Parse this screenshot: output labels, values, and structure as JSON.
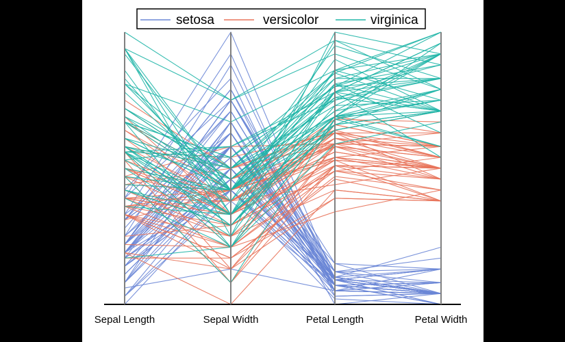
{
  "chart_data": {
    "type": "parallel-coordinates",
    "axes": [
      "Sepal Length",
      "Sepal Width",
      "Petal Length",
      "Petal Width"
    ],
    "normalized": true,
    "ylim": [
      0,
      1
    ],
    "legend": {
      "placement": "top-center"
    },
    "series": [
      {
        "name": "setosa",
        "color": "#6a86d6",
        "lines": [
          [
            0.22,
            0.63,
            0.07,
            0.04
          ],
          [
            0.17,
            0.42,
            0.07,
            0.04
          ],
          [
            0.11,
            0.5,
            0.05,
            0.04
          ],
          [
            0.08,
            0.46,
            0.09,
            0.04
          ],
          [
            0.19,
            0.67,
            0.07,
            0.04
          ],
          [
            0.31,
            0.79,
            0.12,
            0.13
          ],
          [
            0.08,
            0.58,
            0.07,
            0.08
          ],
          [
            0.19,
            0.58,
            0.09,
            0.04
          ],
          [
            0.03,
            0.38,
            0.07,
            0.04
          ],
          [
            0.17,
            0.46,
            0.09,
            0.0
          ],
          [
            0.31,
            0.71,
            0.09,
            0.04
          ],
          [
            0.14,
            0.58,
            0.1,
            0.04
          ],
          [
            0.14,
            0.42,
            0.07,
            0.0
          ],
          [
            0.0,
            0.42,
            0.02,
            0.0
          ],
          [
            0.42,
            0.83,
            0.03,
            0.04
          ],
          [
            0.39,
            1.0,
            0.09,
            0.13
          ],
          [
            0.31,
            0.79,
            0.05,
            0.13
          ],
          [
            0.22,
            0.63,
            0.07,
            0.08
          ],
          [
            0.39,
            0.75,
            0.12,
            0.08
          ],
          [
            0.22,
            0.75,
            0.09,
            0.08
          ],
          [
            0.31,
            0.58,
            0.12,
            0.04
          ],
          [
            0.22,
            0.71,
            0.09,
            0.13
          ],
          [
            0.08,
            0.67,
            0.0,
            0.04
          ],
          [
            0.22,
            0.54,
            0.12,
            0.17
          ],
          [
            0.14,
            0.58,
            0.15,
            0.04
          ],
          [
            0.19,
            0.42,
            0.1,
            0.04
          ],
          [
            0.19,
            0.58,
            0.1,
            0.13
          ],
          [
            0.25,
            0.63,
            0.09,
            0.04
          ],
          [
            0.25,
            0.58,
            0.07,
            0.04
          ],
          [
            0.11,
            0.5,
            0.1,
            0.04
          ],
          [
            0.14,
            0.46,
            0.1,
            0.04
          ],
          [
            0.31,
            0.58,
            0.09,
            0.13
          ],
          [
            0.25,
            0.88,
            0.09,
            0.0
          ],
          [
            0.33,
            0.92,
            0.07,
            0.04
          ],
          [
            0.17,
            0.46,
            0.09,
            0.04
          ],
          [
            0.19,
            0.5,
            0.03,
            0.04
          ],
          [
            0.33,
            0.63,
            0.05,
            0.04
          ],
          [
            0.17,
            0.67,
            0.07,
            0.0
          ],
          [
            0.03,
            0.42,
            0.05,
            0.04
          ],
          [
            0.22,
            0.58,
            0.09,
            0.04
          ],
          [
            0.19,
            0.63,
            0.05,
            0.08
          ],
          [
            0.06,
            0.13,
            0.05,
            0.08
          ],
          [
            0.03,
            0.5,
            0.05,
            0.04
          ],
          [
            0.19,
            0.63,
            0.1,
            0.21
          ],
          [
            0.22,
            0.75,
            0.15,
            0.13
          ],
          [
            0.14,
            0.42,
            0.07,
            0.08
          ],
          [
            0.22,
            0.75,
            0.1,
            0.04
          ],
          [
            0.08,
            0.5,
            0.07,
            0.04
          ],
          [
            0.28,
            0.71,
            0.09,
            0.04
          ],
          [
            0.19,
            0.54,
            0.07,
            0.04
          ]
        ]
      },
      {
        "name": "versicolor",
        "color": "#e8735a",
        "lines": [
          [
            0.75,
            0.5,
            0.63,
            0.54
          ],
          [
            0.58,
            0.5,
            0.59,
            0.58
          ],
          [
            0.72,
            0.46,
            0.66,
            0.58
          ],
          [
            0.33,
            0.13,
            0.51,
            0.5
          ],
          [
            0.61,
            0.33,
            0.61,
            0.58
          ],
          [
            0.39,
            0.33,
            0.59,
            0.5
          ],
          [
            0.56,
            0.54,
            0.63,
            0.63
          ],
          [
            0.17,
            0.17,
            0.39,
            0.38
          ],
          [
            0.64,
            0.38,
            0.61,
            0.5
          ],
          [
            0.25,
            0.29,
            0.49,
            0.54
          ],
          [
            0.19,
            0.0,
            0.42,
            0.38
          ],
          [
            0.44,
            0.42,
            0.54,
            0.58
          ],
          [
            0.47,
            0.08,
            0.51,
            0.38
          ],
          [
            0.5,
            0.38,
            0.63,
            0.54
          ],
          [
            0.36,
            0.38,
            0.44,
            0.5
          ],
          [
            0.67,
            0.46,
            0.58,
            0.54
          ],
          [
            0.36,
            0.42,
            0.59,
            0.58
          ],
          [
            0.42,
            0.29,
            0.53,
            0.38
          ],
          [
            0.53,
            0.08,
            0.59,
            0.58
          ],
          [
            0.36,
            0.21,
            0.49,
            0.42
          ],
          [
            0.44,
            0.5,
            0.64,
            0.71
          ],
          [
            0.5,
            0.33,
            0.51,
            0.5
          ],
          [
            0.56,
            0.21,
            0.66,
            0.58
          ],
          [
            0.5,
            0.33,
            0.63,
            0.46
          ],
          [
            0.58,
            0.38,
            0.56,
            0.5
          ],
          [
            0.64,
            0.42,
            0.58,
            0.54
          ],
          [
            0.69,
            0.33,
            0.64,
            0.54
          ],
          [
            0.67,
            0.42,
            0.68,
            0.67
          ],
          [
            0.47,
            0.38,
            0.59,
            0.58
          ],
          [
            0.39,
            0.25,
            0.42,
            0.38
          ],
          [
            0.33,
            0.17,
            0.47,
            0.42
          ],
          [
            0.33,
            0.17,
            0.46,
            0.38
          ],
          [
            0.42,
            0.29,
            0.49,
            0.46
          ],
          [
            0.47,
            0.29,
            0.69,
            0.63
          ],
          [
            0.31,
            0.42,
            0.59,
            0.58
          ],
          [
            0.47,
            0.58,
            0.59,
            0.63
          ],
          [
            0.67,
            0.46,
            0.63,
            0.58
          ],
          [
            0.56,
            0.13,
            0.58,
            0.5
          ],
          [
            0.36,
            0.42,
            0.53,
            0.5
          ],
          [
            0.33,
            0.21,
            0.51,
            0.5
          ],
          [
            0.33,
            0.25,
            0.58,
            0.46
          ],
          [
            0.5,
            0.42,
            0.61,
            0.54
          ],
          [
            0.42,
            0.25,
            0.51,
            0.46
          ],
          [
            0.19,
            0.13,
            0.39,
            0.38
          ],
          [
            0.36,
            0.29,
            0.54,
            0.5
          ],
          [
            0.39,
            0.42,
            0.54,
            0.46
          ],
          [
            0.39,
            0.38,
            0.54,
            0.5
          ],
          [
            0.53,
            0.38,
            0.56,
            0.5
          ],
          [
            0.22,
            0.21,
            0.34,
            0.42
          ],
          [
            0.39,
            0.33,
            0.53,
            0.5
          ]
        ]
      },
      {
        "name": "virginica",
        "color": "#1fb5a7",
        "lines": [
          [
            0.56,
            0.54,
            0.85,
            1.0
          ],
          [
            0.42,
            0.29,
            0.69,
            0.75
          ],
          [
            0.78,
            0.42,
            0.83,
            0.83
          ],
          [
            0.56,
            0.38,
            0.78,
            0.71
          ],
          [
            0.61,
            0.42,
            0.81,
            0.88
          ],
          [
            0.92,
            0.42,
            0.95,
            0.83
          ],
          [
            0.17,
            0.21,
            0.59,
            0.67
          ],
          [
            0.83,
            0.38,
            0.9,
            0.71
          ],
          [
            0.67,
            0.21,
            0.81,
            0.71
          ],
          [
            0.81,
            0.67,
            0.86,
            1.0
          ],
          [
            0.61,
            0.5,
            0.69,
            0.79
          ],
          [
            0.58,
            0.29,
            0.73,
            0.75
          ],
          [
            0.69,
            0.42,
            0.76,
            0.83
          ],
          [
            0.39,
            0.21,
            0.68,
            0.79
          ],
          [
            0.42,
            0.33,
            0.69,
            0.96
          ],
          [
            0.58,
            0.5,
            0.73,
            0.92
          ],
          [
            0.61,
            0.42,
            0.76,
            0.71
          ],
          [
            0.94,
            0.75,
            0.97,
            0.88
          ],
          [
            0.94,
            0.25,
            1.0,
            0.92
          ],
          [
            0.47,
            0.08,
            0.68,
            0.58
          ],
          [
            0.72,
            0.5,
            0.8,
            0.92
          ],
          [
            0.36,
            0.33,
            0.66,
            0.79
          ],
          [
            0.94,
            0.33,
            0.97,
            0.79
          ],
          [
            0.56,
            0.29,
            0.66,
            0.71
          ],
          [
            0.67,
            0.54,
            0.8,
            0.83
          ],
          [
            0.81,
            0.5,
            0.85,
            0.71
          ],
          [
            0.53,
            0.33,
            0.64,
            0.71
          ],
          [
            0.5,
            0.42,
            0.66,
            0.71
          ],
          [
            0.58,
            0.33,
            0.78,
            0.83
          ],
          [
            0.81,
            0.42,
            0.81,
            0.63
          ],
          [
            0.86,
            0.33,
            0.86,
            0.75
          ],
          [
            1.0,
            0.75,
            0.92,
            0.79
          ],
          [
            0.58,
            0.33,
            0.78,
            0.88
          ],
          [
            0.56,
            0.33,
            0.69,
            0.58
          ],
          [
            0.5,
            0.25,
            0.78,
            0.54
          ],
          [
            0.94,
            0.42,
            0.86,
            0.92
          ],
          [
            0.56,
            0.58,
            0.78,
            0.96
          ],
          [
            0.58,
            0.46,
            0.76,
            0.71
          ],
          [
            0.47,
            0.42,
            0.64,
            0.71
          ],
          [
            0.72,
            0.46,
            0.75,
            0.83
          ],
          [
            0.67,
            0.46,
            0.78,
            0.96
          ],
          [
            0.72,
            0.46,
            0.69,
            0.92
          ],
          [
            0.42,
            0.29,
            0.69,
            0.75
          ],
          [
            0.69,
            0.5,
            0.83,
            0.92
          ],
          [
            0.67,
            0.54,
            0.8,
            1.0
          ],
          [
            0.67,
            0.42,
            0.71,
            0.92
          ],
          [
            0.56,
            0.21,
            0.68,
            0.75
          ],
          [
            0.61,
            0.42,
            0.71,
            0.79
          ],
          [
            0.53,
            0.58,
            0.75,
            0.92
          ],
          [
            0.44,
            0.42,
            0.69,
            0.71
          ]
        ]
      }
    ]
  }
}
